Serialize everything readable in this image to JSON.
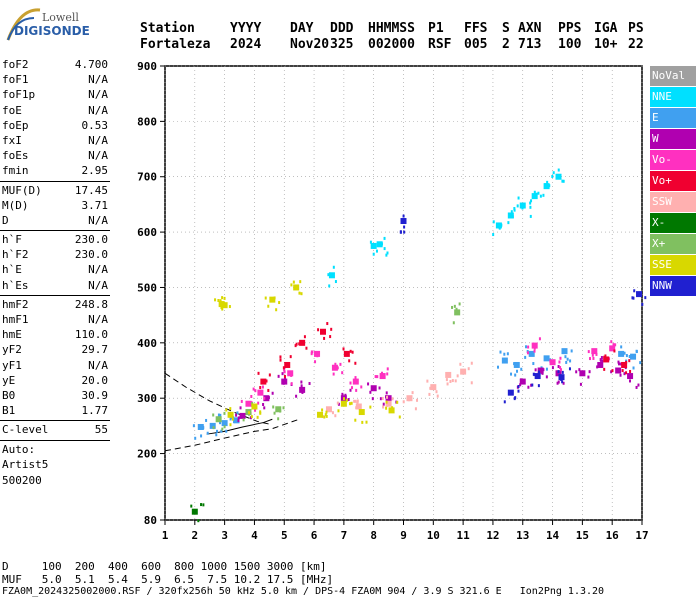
{
  "logo": {
    "line1": "Lowell",
    "line2": "DIGISONDE"
  },
  "header": {
    "labels": [
      "Station",
      "YYYY",
      "DAY",
      "DDD",
      "HHMMSS",
      "P1",
      "FFS",
      "S",
      "AXN",
      "PPS",
      "IGA",
      "PS"
    ],
    "values": [
      "Fortaleza",
      "2024",
      "Nov20",
      "325",
      "002000",
      "RSF",
      "005",
      "2",
      "713",
      "100",
      "10+",
      "22"
    ]
  },
  "params": {
    "group1": [
      {
        "name": "foF2",
        "value": "4.700"
      },
      {
        "name": "foF1",
        "value": "N/A"
      },
      {
        "name": "foF1p",
        "value": "N/A"
      },
      {
        "name": "foE",
        "value": "N/A"
      },
      {
        "name": "foEp",
        "value": "0.53"
      },
      {
        "name": "fxI",
        "value": "N/A"
      },
      {
        "name": "foEs",
        "value": "N/A"
      },
      {
        "name": "fmin",
        "value": "2.95"
      }
    ],
    "group2": [
      {
        "name": "MUF(D)",
        "value": "17.45"
      },
      {
        "name": "M(D)",
        "value": "3.71"
      },
      {
        "name": "D",
        "value": "N/A"
      }
    ],
    "group3": [
      {
        "name": "h`F",
        "value": "230.0"
      },
      {
        "name": "h`F2",
        "value": "230.0"
      },
      {
        "name": "h`E",
        "value": "N/A"
      },
      {
        "name": "h`Es",
        "value": "N/A"
      }
    ],
    "group4": [
      {
        "name": "hmF2",
        "value": "248.8"
      },
      {
        "name": "hmF1",
        "value": "N/A"
      },
      {
        "name": "hmE",
        "value": "110.0"
      },
      {
        "name": "yF2",
        "value": "29.7"
      },
      {
        "name": "yF1",
        "value": "N/A"
      },
      {
        "name": "yE",
        "value": "20.0"
      },
      {
        "name": "B0",
        "value": "30.9"
      },
      {
        "name": "B1",
        "value": "1.77"
      }
    ],
    "group5": [
      {
        "name": "C-level",
        "value": "55"
      }
    ],
    "auto": [
      "Auto:",
      "Artist5",
      "500200"
    ]
  },
  "legend": [
    {
      "label": "NoVal",
      "color": "#a0a0a0"
    },
    {
      "label": "NNE",
      "color": "#00e0ff"
    },
    {
      "label": "E",
      "color": "#40a0f0"
    },
    {
      "label": "W",
      "color": "#b000b0"
    },
    {
      "label": "Vo-",
      "color": "#ff30c0"
    },
    {
      "label": "Vo+",
      "color": "#f00030"
    },
    {
      "label": "SSW",
      "color": "#ffb0b0"
    },
    {
      "label": "X-",
      "color": "#007800"
    },
    {
      "label": "X+",
      "color": "#80c060"
    },
    {
      "label": "SSE",
      "color": "#d8d800"
    },
    {
      "label": "NNW",
      "color": "#2020d0"
    }
  ],
  "bottom": {
    "line1": "D     100  200  400  600  800 1000 1500 3000 [km]",
    "line2": "MUF   5.0  5.1  5.4  5.9  6.5  7.5 10.2 17.5 [MHz]",
    "footer": "FZA0M_2024325002000.RSF / 320fx256h 50 kHz 5.0 km / DPS-4 FZA0M 904 / 3.9 S 321.6 E   Ion2Png 1.3.20"
  },
  "chart_data": {
    "type": "scatter",
    "title": "",
    "xlabel": "",
    "ylabel": "",
    "xlim": [
      1,
      17
    ],
    "ylim": [
      80,
      900
    ],
    "xticks": [
      1,
      2,
      3,
      4,
      5,
      6,
      7,
      8,
      9,
      10,
      11,
      12,
      13,
      14,
      15,
      16,
      17
    ],
    "yticks": [
      80,
      200,
      300,
      400,
      500,
      600,
      700,
      800,
      900
    ],
    "grid": true,
    "series": [
      {
        "name": "NNE",
        "color": "#00e0ff",
        "points": [
          [
            12.2,
            612
          ],
          [
            12.6,
            630
          ],
          [
            13.0,
            648
          ],
          [
            13.4,
            665
          ],
          [
            13.8,
            683
          ],
          [
            14.2,
            700
          ],
          [
            8.0,
            575
          ],
          [
            8.2,
            578
          ],
          [
            6.6,
            522
          ]
        ]
      },
      {
        "name": "E",
        "color": "#40a0f0",
        "points": [
          [
            2.2,
            248
          ],
          [
            2.6,
            250
          ],
          [
            3.0,
            255
          ],
          [
            3.4,
            260
          ],
          [
            12.4,
            368
          ],
          [
            12.8,
            360
          ],
          [
            13.3,
            380
          ],
          [
            13.8,
            372
          ],
          [
            14.4,
            385
          ],
          [
            16.3,
            380
          ],
          [
            16.7,
            375
          ]
        ]
      },
      {
        "name": "W",
        "color": "#b000b0",
        "points": [
          [
            3.6,
            268
          ],
          [
            4.4,
            300
          ],
          [
            5.0,
            330
          ],
          [
            5.6,
            315
          ],
          [
            7.0,
            300
          ],
          [
            8.0,
            318
          ],
          [
            8.5,
            300
          ],
          [
            13.0,
            330
          ],
          [
            13.6,
            350
          ],
          [
            14.2,
            345
          ],
          [
            15.0,
            345
          ],
          [
            15.6,
            360
          ],
          [
            16.2,
            350
          ],
          [
            16.6,
            340
          ]
        ]
      },
      {
        "name": "Vo-",
        "color": "#ff30c0",
        "points": [
          [
            3.8,
            290
          ],
          [
            4.2,
            310
          ],
          [
            5.2,
            345
          ],
          [
            6.1,
            380
          ],
          [
            6.7,
            355
          ],
          [
            7.4,
            330
          ],
          [
            8.3,
            340
          ],
          [
            13.4,
            395
          ],
          [
            14.0,
            365
          ],
          [
            15.4,
            385
          ],
          [
            16.0,
            390
          ]
        ]
      },
      {
        "name": "Vo+",
        "color": "#f00030",
        "points": [
          [
            4.3,
            330
          ],
          [
            5.1,
            360
          ],
          [
            5.6,
            400
          ],
          [
            6.3,
            420
          ],
          [
            7.1,
            380
          ],
          [
            15.8,
            370
          ],
          [
            16.4,
            360
          ]
        ]
      },
      {
        "name": "SSW",
        "color": "#ffb0b0",
        "points": [
          [
            6.5,
            280
          ],
          [
            7.5,
            285
          ],
          [
            8.5,
            290
          ],
          [
            9.2,
            300
          ],
          [
            10.0,
            320
          ],
          [
            10.5,
            342
          ],
          [
            11.0,
            348
          ]
        ]
      },
      {
        "name": "X+",
        "color": "#80c060",
        "points": [
          [
            2.8,
            262
          ],
          [
            3.8,
            275
          ],
          [
            4.8,
            280
          ],
          [
            10.8,
            455
          ]
        ]
      },
      {
        "name": "X-",
        "color": "#007800",
        "points": [
          [
            2.0,
            95
          ]
        ]
      },
      {
        "name": "SSE",
        "color": "#d8d800",
        "points": [
          [
            3.2,
            270
          ],
          [
            4.0,
            285
          ],
          [
            4.6,
            478
          ],
          [
            5.4,
            500
          ],
          [
            6.2,
            270
          ],
          [
            7.0,
            290
          ],
          [
            7.6,
            275
          ],
          [
            8.6,
            278
          ],
          [
            3.0,
            468
          ],
          [
            2.9,
            470
          ]
        ]
      },
      {
        "name": "NNW",
        "color": "#2020d0",
        "points": [
          [
            9.0,
            620
          ],
          [
            12.6,
            310
          ],
          [
            13.5,
            340
          ],
          [
            14.3,
            338
          ],
          [
            16.9,
            488
          ]
        ]
      }
    ]
  }
}
